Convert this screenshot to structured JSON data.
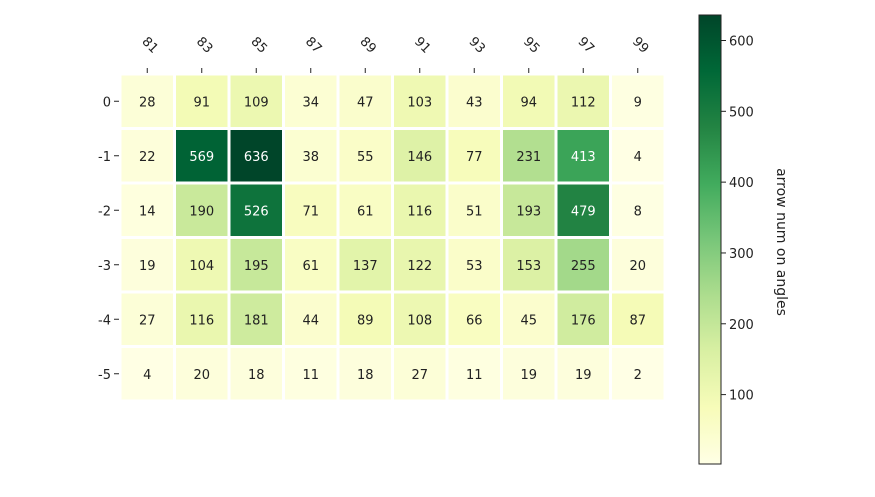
{
  "chart_data": {
    "type": "heatmap",
    "x_tick_labels": [
      "81",
      "83",
      "85",
      "87",
      "89",
      "91",
      "93",
      "95",
      "97",
      "99"
    ],
    "y_tick_labels": [
      "0",
      "-1",
      "-2",
      "-3",
      "-4",
      "-5"
    ],
    "values": [
      [
        28,
        91,
        109,
        34,
        47,
        103,
        43,
        94,
        112,
        9
      ],
      [
        22,
        569,
        636,
        38,
        55,
        146,
        77,
        231,
        413,
        4
      ],
      [
        14,
        190,
        526,
        71,
        61,
        116,
        51,
        193,
        479,
        8
      ],
      [
        19,
        104,
        195,
        61,
        137,
        122,
        53,
        153,
        255,
        20
      ],
      [
        27,
        116,
        181,
        44,
        89,
        108,
        66,
        45,
        176,
        87
      ],
      [
        4,
        20,
        18,
        11,
        18,
        27,
        11,
        19,
        19,
        2
      ]
    ],
    "colormap": "YlGn",
    "colorbar": {
      "label": "arrow num on angles",
      "range": [
        2,
        636
      ],
      "ticks": [
        "100",
        "200",
        "300",
        "400",
        "500",
        "600"
      ]
    },
    "grid_color": "#ffffff",
    "text_color_dark": "#222222",
    "text_color_light": "#ffffff"
  }
}
